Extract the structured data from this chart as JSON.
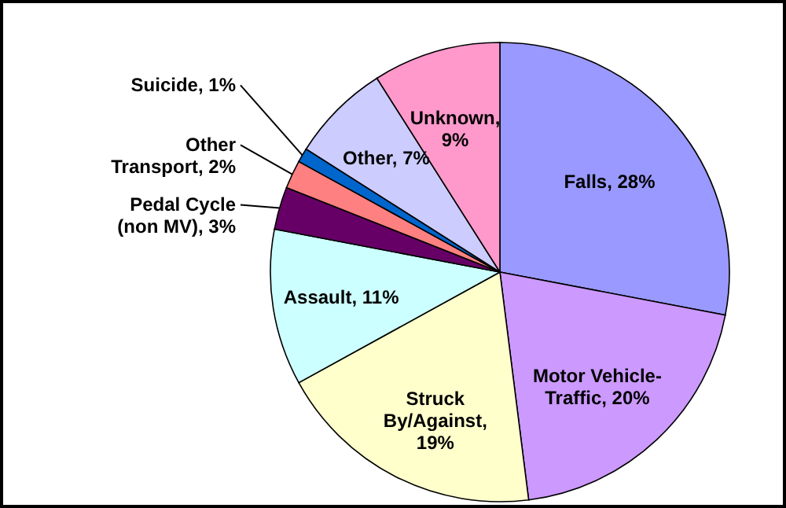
{
  "chart_data": {
    "type": "pie",
    "categories": [
      "Falls, 28%",
      "Motor Vehicle-Traffic, 20%",
      "Struck By/Against, 19%",
      "Assault, 11%",
      "Pedal Cycle (non MV), 3%",
      "Other Transport, 2%",
      "Suicide, 1%",
      "Other, 7%",
      "Unknown, 9%"
    ],
    "values": [
      28,
      20,
      19,
      11,
      3,
      2,
      1,
      7,
      9
    ],
    "colors": [
      "#9999ff",
      "#cc99ff",
      "#ffffcc",
      "#ccffff",
      "#660066",
      "#ff8080",
      "#0066cc",
      "#ccccff",
      "#ff99cc"
    ]
  }
}
